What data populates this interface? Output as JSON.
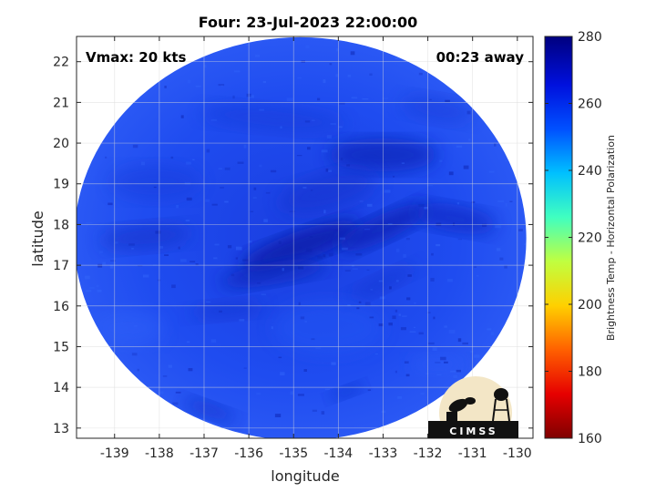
{
  "title": "Four: 23-Jul-2023 22:00:00",
  "annotations": {
    "vmax": "Vmax: 20 kts",
    "time_away": "00:23 away"
  },
  "axes": {
    "xlabel": "longitude",
    "ylabel": "latitude",
    "xlim": [
      -139.85,
      -129.65
    ],
    "ylim": [
      12.75,
      22.62
    ],
    "x_ticks": [
      "-139",
      "-138",
      "-137",
      "-136",
      "-135",
      "-134",
      "-133",
      "-132",
      "-131",
      "-130"
    ],
    "y_ticks": [
      "13",
      "14",
      "15",
      "16",
      "17",
      "18",
      "19",
      "20",
      "21",
      "22"
    ],
    "grid": true
  },
  "colorbar": {
    "label": "Brightness Temp - Horizontal Polarization",
    "ticks": [
      "160",
      "180",
      "200",
      "220",
      "240",
      "260",
      "280"
    ],
    "range": [
      160,
      280
    ],
    "colormap": "jet"
  },
  "logo": {
    "text": "CIMSS"
  },
  "swath": {
    "center_lon": -134.85,
    "center_lat": 17.65,
    "radius_lon": 5.05,
    "radius_lat": 4.95
  }
}
